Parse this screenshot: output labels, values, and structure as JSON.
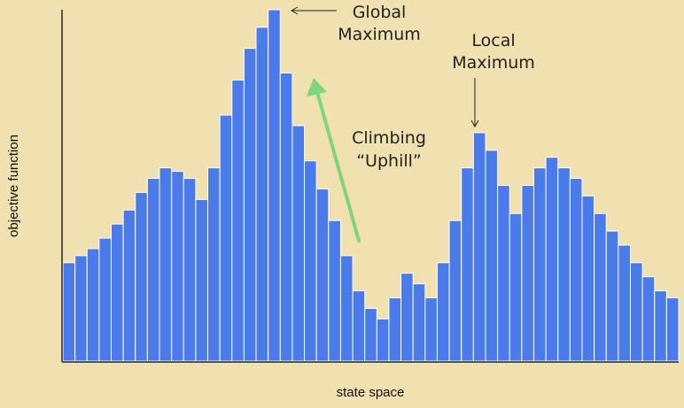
{
  "colors": {
    "background": "#f1e0b0",
    "bar": "#4b7bea",
    "bar_edge": "#ffffff",
    "arrow": "#7dd67d",
    "axis": "#222222"
  },
  "chart_data": {
    "type": "bar",
    "title": "",
    "xlabel": "state space",
    "ylabel": "objective function",
    "ylim": [
      0,
      100
    ],
    "grid": false,
    "values": [
      28,
      30,
      32,
      35,
      39,
      43,
      48,
      52,
      55,
      54,
      52,
      46,
      55,
      70,
      80,
      89,
      95,
      100,
      82,
      67,
      57,
      49,
      40,
      30,
      20,
      15,
      12,
      18,
      25,
      22,
      18,
      28,
      40,
      55,
      65,
      60,
      50,
      42,
      50,
      55,
      58,
      55,
      52,
      47,
      42,
      37,
      33,
      28,
      24,
      20,
      18
    ],
    "annotations": [
      {
        "line1": "Global",
        "line2": "Maximum",
        "target_index": 17
      },
      {
        "line1": "Local",
        "line2": "Maximum",
        "target_index": 34
      },
      {
        "line1": "Climbing",
        "line2": "“Uphill”"
      }
    ]
  }
}
